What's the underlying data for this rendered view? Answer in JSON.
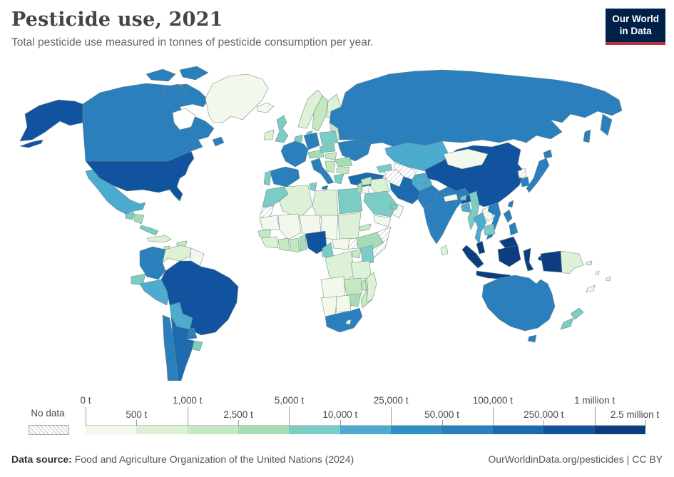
{
  "header": {
    "title": "Pesticide use, 2021",
    "subtitle": "Total pesticide use measured in tonnes of pesticide consumption per year.",
    "logo_line1": "Our World",
    "logo_line2": "in Data",
    "logo_bg": "#002147",
    "logo_underline": "#b5333f"
  },
  "legend": {
    "no_data_label": "No data",
    "ticks": [
      {
        "label": "0 t",
        "row": "top"
      },
      {
        "label": "500 t",
        "row": "bottom"
      },
      {
        "label": "1,000 t",
        "row": "top"
      },
      {
        "label": "2,500 t",
        "row": "bottom"
      },
      {
        "label": "5,000 t",
        "row": "top"
      },
      {
        "label": "10,000 t",
        "row": "bottom"
      },
      {
        "label": "25,000 t",
        "row": "top"
      },
      {
        "label": "50,000 t",
        "row": "bottom"
      },
      {
        "label": "100,000 t",
        "row": "top"
      },
      {
        "label": "250,000 t",
        "row": "bottom"
      },
      {
        "label": "1 million t",
        "row": "top"
      },
      {
        "label": "2.5 million t",
        "row": "bottom"
      }
    ],
    "colors": [
      "#f2f9ec",
      "#dcf1d6",
      "#c4e8bf",
      "#a5dbb7",
      "#7bccc4",
      "#4eabd0",
      "#3090c4",
      "#2b7fbd",
      "#1c6ab0",
      "#12539f",
      "#0b3d80"
    ]
  },
  "footer": {
    "source_label": "Data source:",
    "source_text": " Food and Agriculture Organization of the United Nations (2024)",
    "credit": "OurWorldinData.org/pesticides | CC BY"
  },
  "chart_data": {
    "type": "heatmap",
    "subtype": "world-choropleth",
    "title": "Pesticide use, 2021",
    "unit": "tonnes of pesticide consumption per year",
    "year": 2021,
    "bin_edges": [
      "0 t",
      "500 t",
      "1,000 t",
      "2,500 t",
      "5,000 t",
      "10,000 t",
      "25,000 t",
      "50,000 t",
      "100,000 t",
      "250,000 t",
      "1 million t",
      "2.5 million t"
    ],
    "bin_colors": [
      "#f2f9ec",
      "#dcf1d6",
      "#c4e8bf",
      "#a5dbb7",
      "#7bccc4",
      "#4eabd0",
      "#3090c4",
      "#2b7fbd",
      "#1c6ab0",
      "#12539f",
      "#0b3d80"
    ],
    "no_data_style": "diagonal-hatch",
    "country_bins": {
      "usa": 10,
      "canada": 8,
      "greenland": 1,
      "iceland": 1,
      "mexico": 6,
      "guatemala": 5,
      "honduras": 4,
      "panama": 5,
      "cuba": 2,
      "hispaniola": 3,
      "jamaica": 3,
      "colombia": 8,
      "venezuela": 2,
      "guyana": 1,
      "ecuador": 5,
      "peru": 6,
      "brazil": 10,
      "bolivia": 6,
      "paraguay": 8,
      "chile": 8,
      "argentina": 9,
      "uruguay": 5,
      "ireland": 2,
      "uk": 5,
      "norway": 2,
      "sweden": 3,
      "finland": 2,
      "denmark": 5,
      "baltics": 3,
      "belarus": 2,
      "benelux": 5,
      "germany": 8,
      "poland": 5,
      "france": 8,
      "spain": 8,
      "portugal": 5,
      "italy": 8,
      "alpine": 4,
      "czechia": 5,
      "hungary": 3,
      "ukraine": 8,
      "romania": 4,
      "balkans": 3,
      "bulgaria": 3,
      "greece": 5,
      "turkey": 9,
      "morocco": 5,
      "western-sahara": "no_data",
      "algeria": 2,
      "tunisia": 5,
      "libya": 2,
      "egypt": 5,
      "mauritania": 1,
      "mali": 1,
      "niger": 1,
      "chad": 1,
      "sudan": 2,
      "eritrea": 3,
      "ethiopia": 4,
      "somalia": "no_data",
      "south-sudan": "no_data",
      "senegal": 3,
      "guinea": 2,
      "ivory-coast": 3,
      "ghana": 3,
      "benin": 4,
      "nigeria": 10,
      "cameroon": 5,
      "car": 1,
      "drc": 2,
      "uganda": 3,
      "kenya": 5,
      "tanzania": 2,
      "angola": 1,
      "zambia": 3,
      "malawi": 3,
      "mozambique": 3,
      "zimbabwe": 4,
      "botswana": 1,
      "namibia": 1,
      "south-africa": 8,
      "lesotho": 1,
      "madagascar": 2,
      "syria": 3,
      "levant": 4,
      "jordan": 1,
      "iraq": 2,
      "saudi-arabia": 5,
      "yemen": 1,
      "oman": 1,
      "uae": 5,
      "iran": 9,
      "afghanistan": 6,
      "pakistan": 8,
      "caucasus": 5,
      "russia": 8,
      "kazakhstan": 6,
      "uzbekistan": "no_data",
      "turkmenistan": "no_data",
      "kyrgyzstan": 1,
      "tajikistan": 6,
      "mongolia": 1,
      "china": 10,
      "taiwan": 8,
      "north-korea": "no_data",
      "south-korea": 8,
      "japan": 8,
      "india": 8,
      "nepal": 1,
      "bhutan": 5,
      "bangladesh": 6,
      "sri-lanka": 2,
      "myanmar": 5,
      "thailand": 6,
      "laos": 1,
      "vietnam": 8,
      "cambodia": 5,
      "malaysia": 11,
      "indonesia": 11,
      "philippines": 8,
      "papua-new-guinea": 2,
      "australia": 8,
      "new-zealand": 5,
      "fiji": 2,
      "new-caledonia": 1,
      "solomon-islands": 2,
      "vanuatu": 1
    }
  }
}
